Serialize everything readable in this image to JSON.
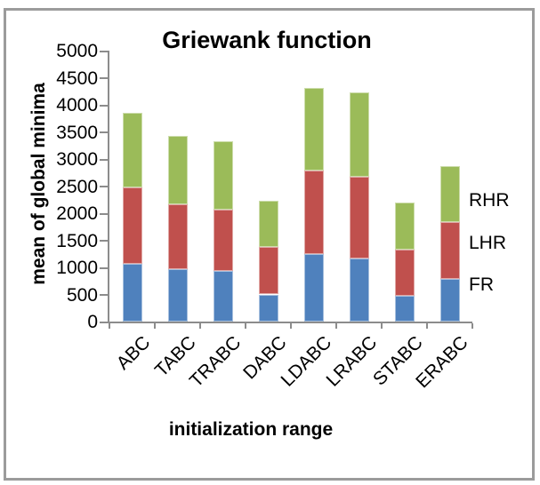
{
  "chart_data": {
    "type": "bar",
    "stacked": true,
    "title": "Griewank function",
    "xlabel": "initialization range",
    "ylabel": "mean of global minima",
    "ylim": [
      0,
      5000
    ],
    "ytick_step": 500,
    "grid": false,
    "legend_position": "right-annotations",
    "categories": [
      "ABC",
      "TABC",
      "TRABC",
      "DABC",
      "LDABC",
      "LRABC",
      "STABC",
      "ERABC"
    ],
    "series": [
      {
        "name": "FR",
        "color": "#4F81BD",
        "values": [
          1070,
          960,
          930,
          500,
          1240,
          1170,
          480,
          780
        ]
      },
      {
        "name": "LHR",
        "color": "#C0504D",
        "values": [
          1400,
          1210,
          1140,
          870,
          1550,
          1510,
          850,
          1060
        ]
      },
      {
        "name": "RHR",
        "color": "#9BBB59",
        "values": [
          1380,
          1260,
          1250,
          860,
          1520,
          1550,
          870,
          1030
        ]
      }
    ],
    "annotations": [
      {
        "text": "RHR",
        "x": 527,
        "y": 226
      },
      {
        "text": "LHR",
        "x": 527,
        "y": 274
      },
      {
        "text": "FR",
        "x": 527,
        "y": 321
      }
    ]
  },
  "colors": {
    "frame_border": "#9B9B9B",
    "axis": "#8C8C8C",
    "background": "#FFFFFF",
    "text": "#000000"
  }
}
